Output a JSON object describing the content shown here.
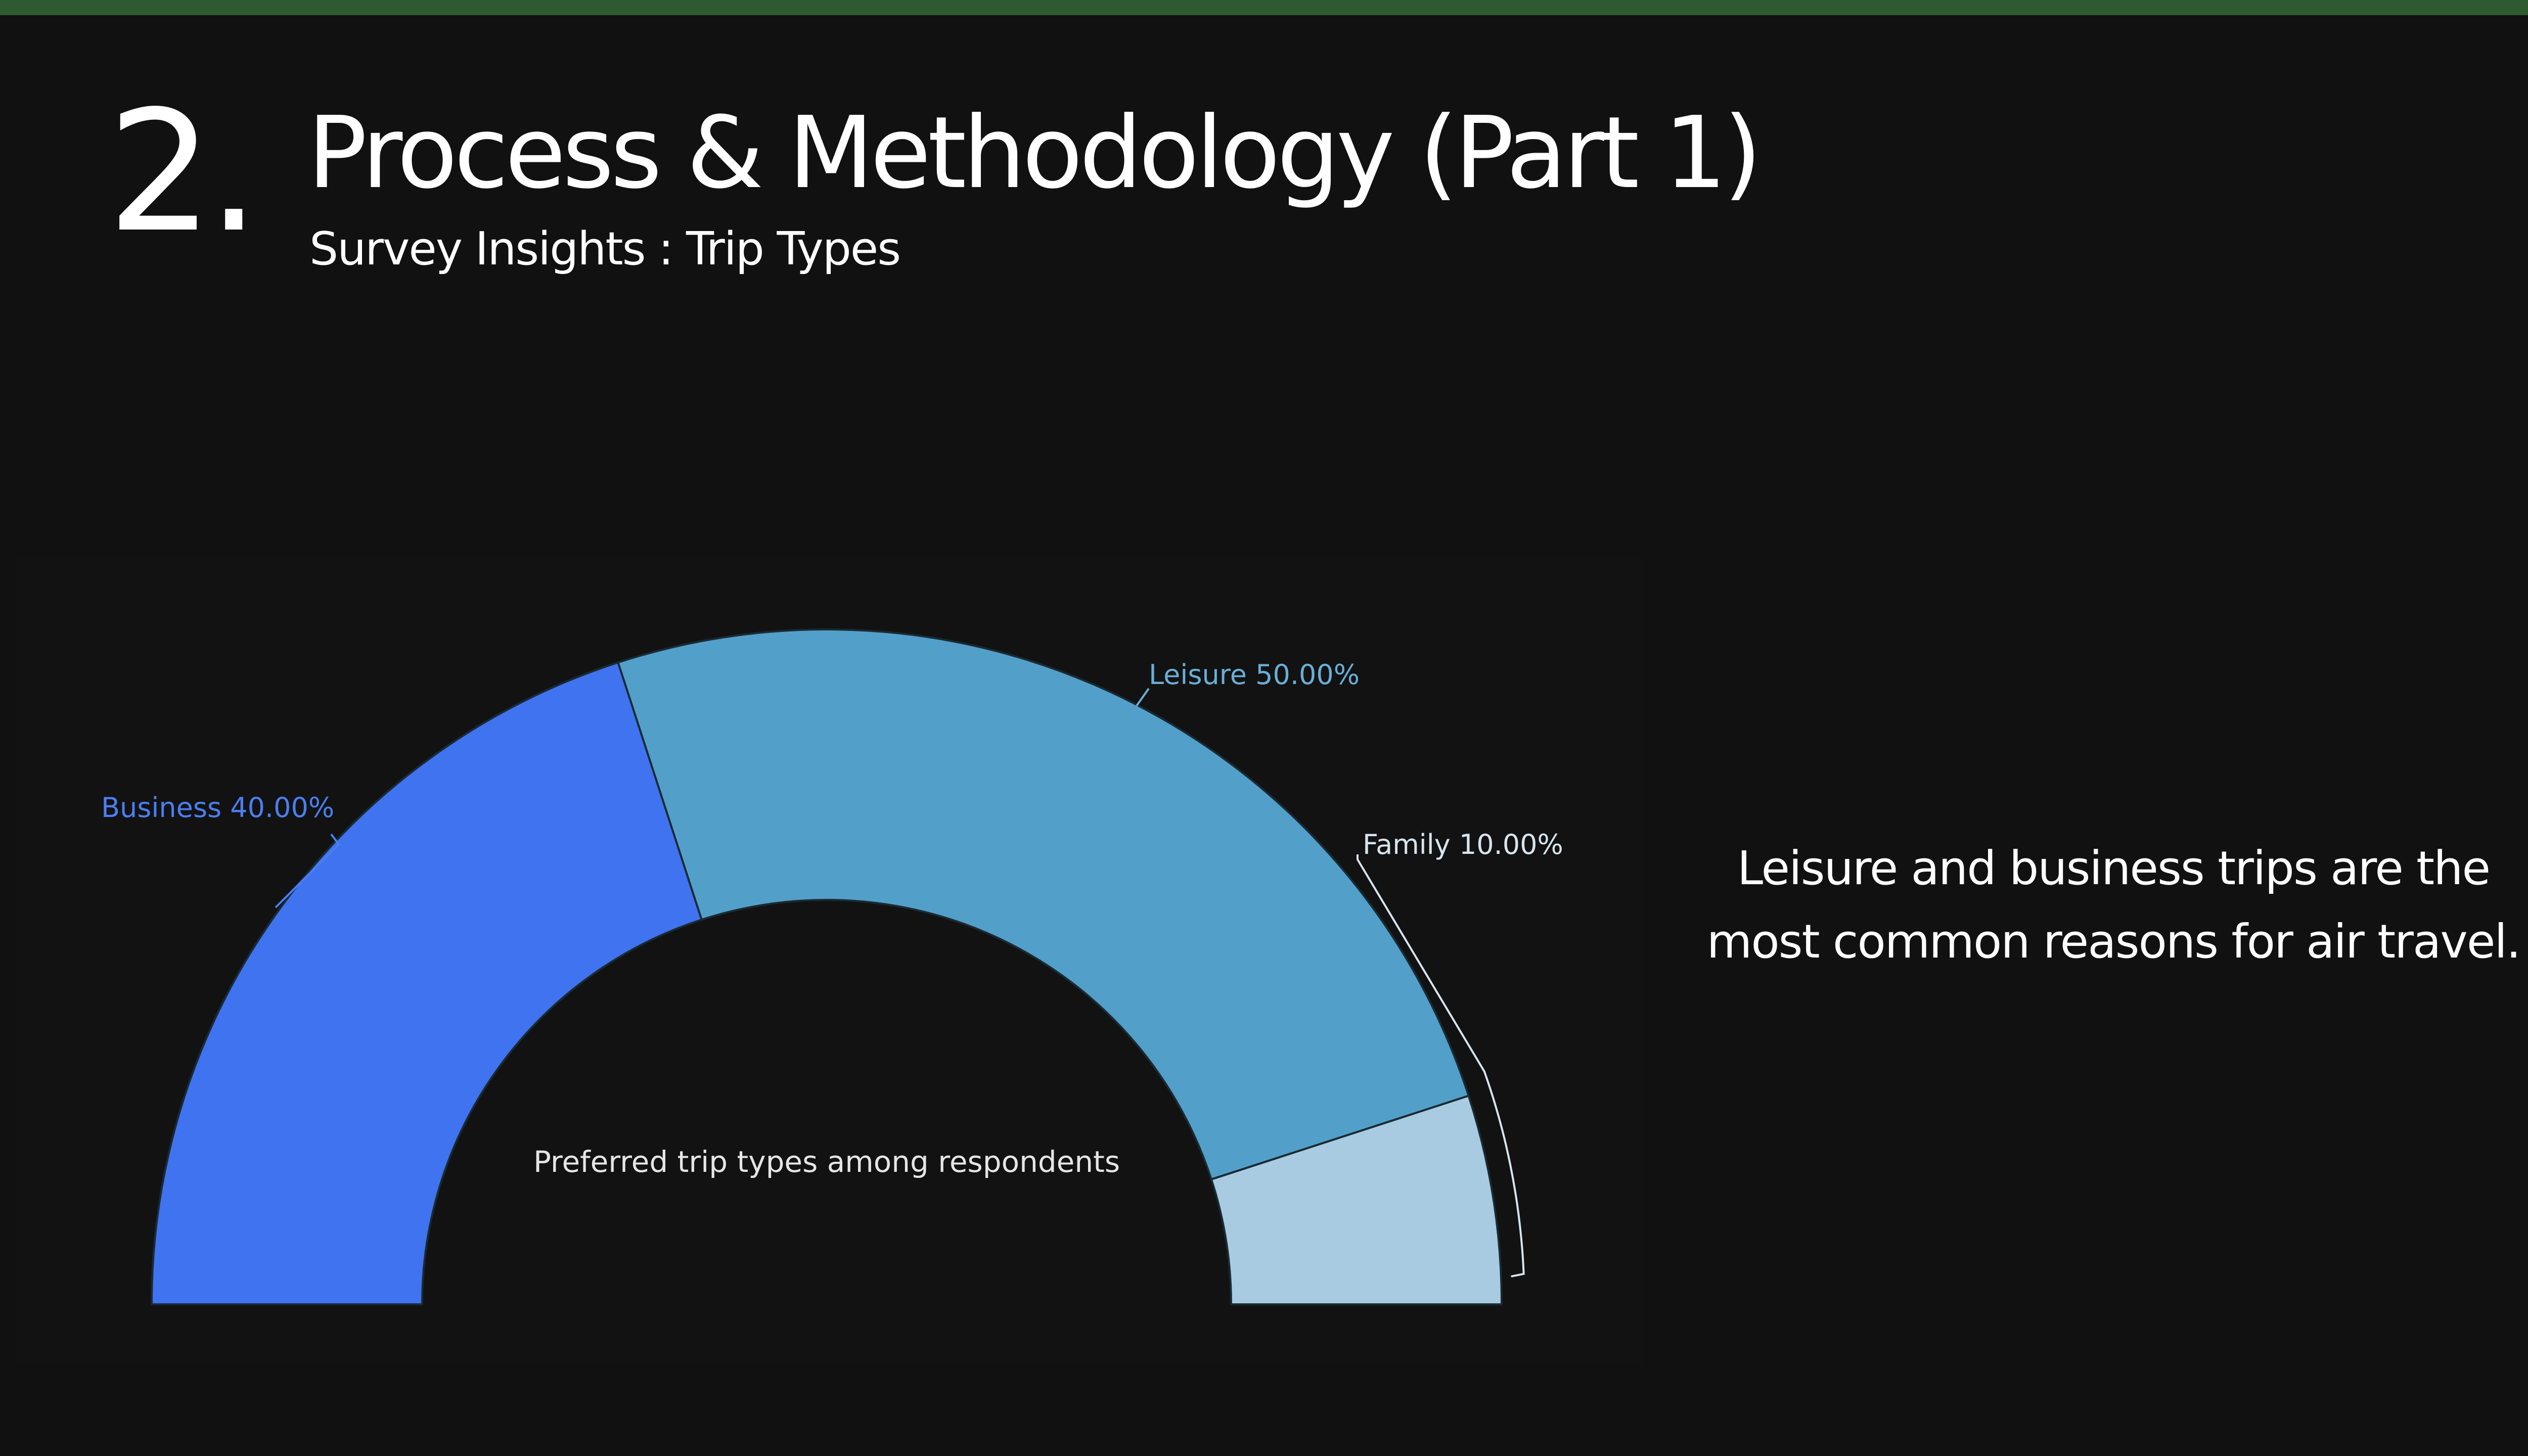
{
  "colors": {
    "top_bar": "#2e5a31",
    "background": "#111111",
    "slice_business": "#4073f0",
    "slice_leisure": "#52a0c9",
    "slice_family": "#a8cbe2",
    "label_business": "#4b7ef0",
    "label_leisure": "#6aaed6",
    "label_family": "#d8e4ee",
    "center_label": "#e6e6e6"
  },
  "header": {
    "section_number": "2.",
    "title": "Process & Methodology (Part 1)",
    "subtitle": "Survey Insights : Trip Types"
  },
  "insight": {
    "text": "Leisure and business trips are the most common reasons for air travel."
  },
  "chart_data": {
    "type": "pie",
    "variant": "half-donut",
    "title": "Preferred trip types among respondents",
    "categories": [
      "Business",
      "Leisure",
      "Family"
    ],
    "values": [
      40.0,
      50.0,
      10.0
    ],
    "labels": [
      "Business 40.00%",
      "Leisure 50.00%",
      "Family 10.00%"
    ],
    "legend": "none",
    "grid": false
  }
}
